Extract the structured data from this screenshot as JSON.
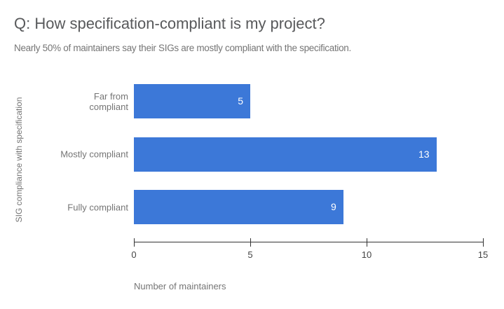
{
  "header": {
    "title": "Q: How specification-compliant is my project?",
    "subtitle": "Nearly 50% of maintainers say their SIGs are mostly compliant with the specification."
  },
  "chart_data": {
    "type": "bar",
    "orientation": "horizontal",
    "title": "Q: How specification-compliant is my project?",
    "subtitle": "Nearly 50% of maintainers say their SIGs are mostly compliant with the specification.",
    "categories": [
      "Far from compliant",
      "Mostly compliant",
      "Fully compliant"
    ],
    "values": [
      5,
      13,
      9
    ],
    "xlabel": "Number of maintainers",
    "ylabel": "SIG compliance with specification",
    "xlim": [
      0,
      15
    ],
    "xticks": [
      0,
      5,
      10,
      15
    ],
    "grid": false,
    "legend": "none",
    "bar_color": "#3c78d8",
    "value_label_color": "#ffffff",
    "axis_color": "#333333",
    "tick_label_color": "#444444",
    "label_color": "#757575",
    "title_color": "#58595b"
  }
}
